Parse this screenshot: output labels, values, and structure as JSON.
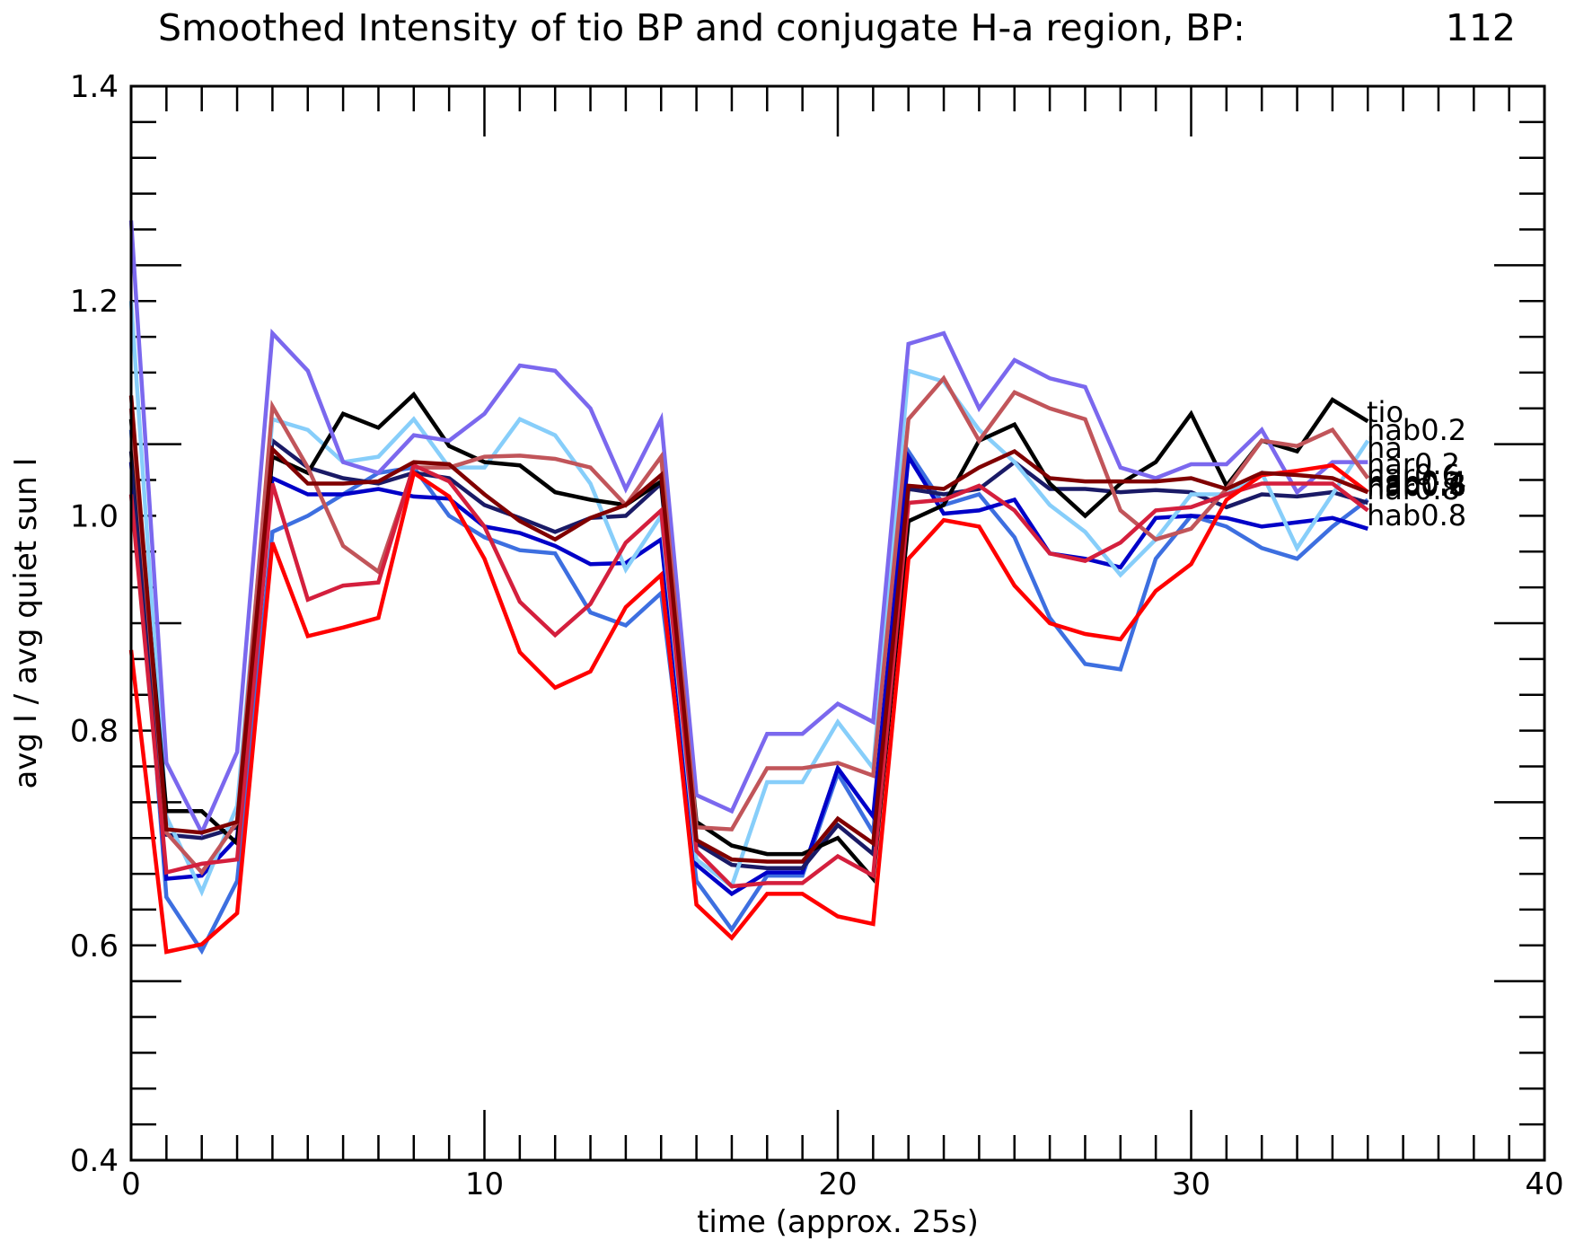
{
  "chart_data": {
    "type": "line",
    "title": "Smoothed Intensity of tio BP and conjugate H-a region, BP:",
    "title_number": "112",
    "xlabel": "time (approx. 25s)",
    "ylabel": "avg I / avg quiet sun I",
    "xlim": [
      0,
      40
    ],
    "ylim": [
      0.4,
      1.4
    ],
    "xticks": [
      "0",
      "10",
      "20",
      "30",
      "40"
    ],
    "yticks": [
      "0.4",
      "0.6",
      "0.8",
      "1.0",
      "1.2",
      "1.4"
    ],
    "grid": false,
    "x": [
      0,
      1,
      2,
      3,
      4,
      5,
      6,
      7,
      8,
      9,
      10,
      11,
      12,
      13,
      14,
      15,
      16,
      17,
      18,
      19,
      20,
      21,
      22,
      23,
      24,
      25,
      26,
      27,
      28,
      29,
      30,
      31,
      32,
      33,
      34,
      35
    ],
    "series": [
      {
        "name": "hab0.8",
        "color": "#3d6fe0",
        "values": [
          1.08,
          0.645,
          0.595,
          0.66,
          0.985,
          1.0,
          1.02,
          1.04,
          1.045,
          1.0,
          0.98,
          0.968,
          0.965,
          0.91,
          0.898,
          0.928,
          0.66,
          0.615,
          0.665,
          0.665,
          0.76,
          0.705,
          1.06,
          1.01,
          1.02,
          0.98,
          0.905,
          0.862,
          0.857,
          0.96,
          1.0,
          0.99,
          0.97,
          0.96,
          0.99,
          1.015
        ]
      },
      {
        "name": "hab0.6",
        "color": "#0000c8",
        "values": [
          1.05,
          0.662,
          0.665,
          0.7,
          1.035,
          1.02,
          1.02,
          1.025,
          1.018,
          1.016,
          0.99,
          0.984,
          0.972,
          0.955,
          0.956,
          0.978,
          0.675,
          0.648,
          0.668,
          0.668,
          0.765,
          0.72,
          1.055,
          1.002,
          1.005,
          1.015,
          0.965,
          0.96,
          0.952,
          0.998,
          1.0,
          0.998,
          0.99,
          0.994,
          0.998,
          0.988
        ]
      },
      {
        "name": "hab0.4",
        "color": "#1a1a66",
        "values": [
          1.06,
          0.703,
          0.7,
          0.71,
          1.07,
          1.045,
          1.035,
          1.03,
          1.04,
          1.035,
          1.01,
          0.998,
          0.985,
          0.998,
          1.0,
          1.03,
          0.695,
          0.675,
          0.672,
          0.672,
          0.712,
          0.685,
          1.025,
          1.02,
          1.025,
          1.05,
          1.025,
          1.025,
          1.022,
          1.024,
          1.022,
          1.008,
          1.02,
          1.018,
          1.022,
          1.012
        ]
      },
      {
        "name": "hab0.2",
        "color": "#87cefa",
        "values": [
          1.2,
          0.72,
          0.65,
          0.73,
          1.09,
          1.08,
          1.05,
          1.055,
          1.09,
          1.045,
          1.045,
          1.09,
          1.075,
          1.03,
          0.95,
          1.0,
          0.68,
          0.655,
          0.752,
          0.752,
          0.808,
          0.765,
          1.135,
          1.125,
          1.08,
          1.05,
          1.01,
          0.985,
          0.945,
          0.978,
          1.02,
          1.02,
          1.04,
          0.97,
          1.02,
          1.07
        ]
      },
      {
        "name": "tio",
        "color": "#000000",
        "values": [
          1.09,
          0.725,
          0.725,
          0.695,
          1.055,
          1.04,
          1.095,
          1.082,
          1.113,
          1.065,
          1.05,
          1.047,
          1.022,
          1.015,
          1.01,
          1.032,
          0.715,
          0.693,
          0.685,
          0.685,
          0.7,
          0.662,
          0.995,
          1.01,
          1.07,
          1.085,
          1.03,
          1.0,
          1.03,
          1.05,
          1.095,
          1.028,
          1.07,
          1.06,
          1.108,
          1.088
        ]
      },
      {
        "name": "har0.2",
        "color": "#7b68ee",
        "values": [
          1.275,
          0.77,
          0.705,
          0.78,
          1.17,
          1.135,
          1.05,
          1.04,
          1.075,
          1.07,
          1.095,
          1.14,
          1.135,
          1.1,
          1.025,
          1.09,
          0.74,
          0.725,
          0.797,
          0.797,
          0.825,
          0.808,
          1.16,
          1.17,
          1.1,
          1.145,
          1.128,
          1.12,
          1.045,
          1.035,
          1.048,
          1.048,
          1.08,
          1.022,
          1.05,
          1.05
        ]
      },
      {
        "name": "har0.4",
        "color": "#c1555a",
        "values": [
          1.1,
          0.705,
          0.668,
          0.715,
          1.102,
          1.045,
          0.972,
          0.948,
          1.045,
          1.045,
          1.055,
          1.056,
          1.053,
          1.045,
          1.01,
          1.055,
          0.71,
          0.708,
          0.765,
          0.765,
          0.77,
          0.758,
          1.09,
          1.128,
          1.07,
          1.115,
          1.1,
          1.09,
          1.005,
          0.978,
          0.988,
          1.025,
          1.07,
          1.065,
          1.08,
          1.035
        ]
      },
      {
        "name": "har0.6",
        "color": "#d41f3d",
        "values": [
          1.02,
          0.668,
          0.676,
          0.68,
          1.03,
          0.922,
          0.935,
          0.938,
          1.047,
          1.032,
          0.99,
          0.92,
          0.889,
          0.918,
          0.975,
          1.005,
          0.688,
          0.655,
          0.658,
          0.658,
          0.683,
          0.665,
          1.012,
          1.015,
          1.028,
          1.005,
          0.965,
          0.958,
          0.975,
          1.005,
          1.008,
          1.02,
          1.03,
          1.03,
          1.03,
          1.005
        ]
      },
      {
        "name": "har0.8",
        "color": "#ff0000",
        "values": [
          0.875,
          0.594,
          0.601,
          0.63,
          0.975,
          0.888,
          0.896,
          0.905,
          1.04,
          1.018,
          0.96,
          0.873,
          0.84,
          0.855,
          0.915,
          0.945,
          0.638,
          0.607,
          0.648,
          0.648,
          0.627,
          0.62,
          0.96,
          0.996,
          0.99,
          0.935,
          0.9,
          0.89,
          0.885,
          0.93,
          0.955,
          1.015,
          1.038,
          1.042,
          1.047,
          1.022
        ]
      },
      {
        "name": "ha",
        "color": "#800000",
        "values": [
          1.112,
          0.708,
          0.705,
          0.715,
          1.062,
          1.03,
          1.03,
          1.032,
          1.05,
          1.048,
          1.02,
          0.995,
          0.978,
          0.998,
          1.01,
          1.038,
          0.698,
          0.68,
          0.678,
          0.678,
          0.718,
          0.695,
          1.028,
          1.025,
          1.045,
          1.06,
          1.035,
          1.032,
          1.032,
          1.032,
          1.035,
          1.025,
          1.04,
          1.038,
          1.035,
          1.022
        ]
      }
    ],
    "end_labels": [
      "tio",
      "hab0.2",
      "ha",
      "har0.2",
      "har0.6",
      "hab0.4",
      "hab0.6",
      "har0.8",
      "hab0.2",
      "hab0.8"
    ]
  }
}
